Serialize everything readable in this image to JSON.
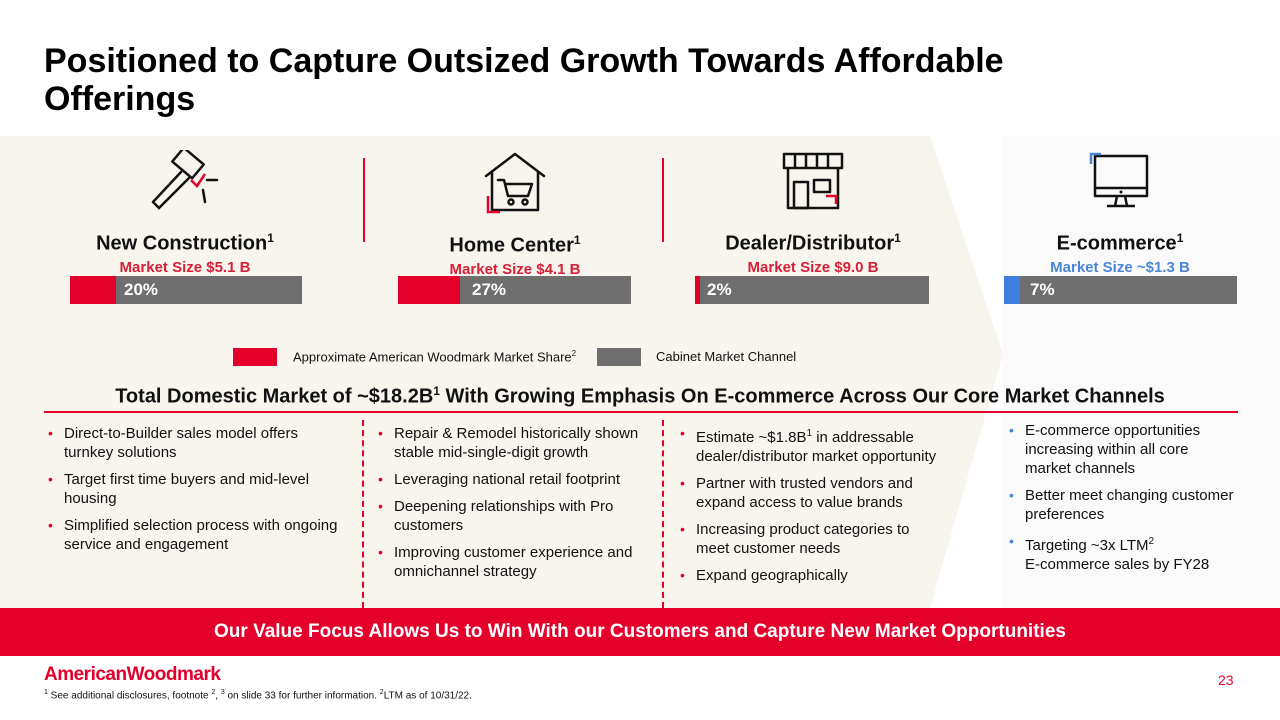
{
  "title": "Positioned to Capture Outsized Growth Towards Affordable Offerings",
  "channels": [
    {
      "name": "New Construction",
      "sup": "1",
      "market_size": "Market Size $5.1 B",
      "share_label": "20%",
      "icon": "hammer-icon"
    },
    {
      "name": "Home Center",
      "sup": "1",
      "market_size": "Market Size $4.1 B",
      "share_label": "27%",
      "icon": "house-cart-icon"
    },
    {
      "name": "Dealer/Distributor",
      "sup": "1",
      "market_size": "Market Size $9.0 B",
      "share_label": "2%",
      "icon": "storefront-icon"
    },
    {
      "name": "E-commerce",
      "sup": "1",
      "market_size": "Market Size ~$1.3 B",
      "share_label": "7%",
      "icon": "monitor-icon"
    }
  ],
  "legend": {
    "share": "Approximate American Woodmark Market Share",
    "share_sup": "2",
    "channel": "Cabinet Market Channel"
  },
  "subhead": {
    "pre": "Total Domestic Market of ~$18.2B",
    "sup": "1",
    "post": " With Growing Emphasis On E-commerce Across Our Core Market Channels"
  },
  "columns": {
    "new_construction": [
      "Direct-to-Builder sales model offers turnkey solutions",
      "Target first time buyers and mid-level housing",
      "Simplified selection process with ongoing service and engagement"
    ],
    "home_center": [
      "Repair & Remodel historically shown stable mid-single-digit growth",
      "Leveraging national retail footprint",
      "Deepening relationships with Pro customers",
      "Improving customer experience and omnichannel strategy"
    ],
    "dealer": {
      "first_pre": "Estimate ~$1.8B",
      "first_sup": "1",
      "first_post": " in addressable dealer/distributor market opportunity",
      "rest": [
        "Partner with trusted vendors and expand access to value brands",
        "Increasing product categories to meet customer needs",
        "Expand geographically"
      ]
    },
    "ecommerce": {
      "items": [
        "E-commerce opportunities increasing within all core market channels",
        "Better meet changing customer preferences"
      ],
      "last_pre": "Targeting ~3x LTM",
      "last_sup": "2",
      "last_post": "E-commerce sales by FY28"
    }
  },
  "footer_banner": "Our Value Focus Allows Us to Win With our Customers and Capture New Market Opportunities",
  "logo": "AmericanWoodmark",
  "page_number": "23",
  "footnote": {
    "p1": " See additional disclosures, footnote ",
    "p2": ", ",
    "p3": " on slide 33 for further information. ",
    "p4": "LTM as of 10/31/22.",
    "s1": "1",
    "s2": "2",
    "s3": "3",
    "s4": "2"
  },
  "colors": {
    "accent_red": "#e4002b",
    "gray": "#6f6f6f",
    "blue": "#4a86d8",
    "band": "#f7f5ee"
  },
  "share_fractions": [
    0.2,
    0.27,
    0.02,
    0.07
  ]
}
